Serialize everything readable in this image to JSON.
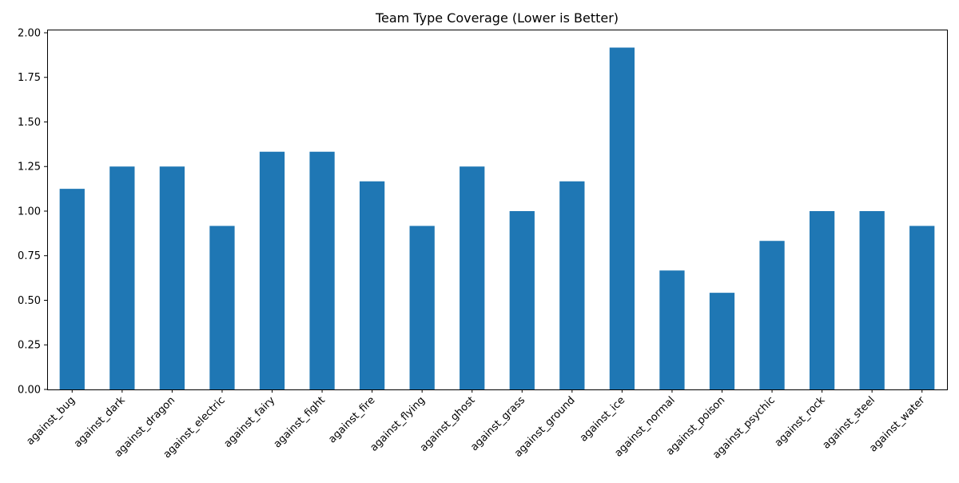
{
  "chart_data": {
    "type": "bar",
    "title": "Team Type Coverage (Lower is Better)",
    "xlabel": "",
    "ylabel": "",
    "categories": [
      "against_bug",
      "against_dark",
      "against_dragon",
      "against_electric",
      "against_fairy",
      "against_fight",
      "against_fire",
      "against_flying",
      "against_ghost",
      "against_grass",
      "against_ground",
      "against_ice",
      "against_normal",
      "against_poison",
      "against_psychic",
      "against_rock",
      "against_steel",
      "against_water"
    ],
    "values": [
      1.125,
      1.25,
      1.25,
      0.917,
      1.333,
      1.333,
      1.167,
      0.917,
      1.25,
      1.0,
      1.167,
      1.917,
      0.667,
      0.542,
      0.833,
      1.0,
      1.0,
      0.917
    ],
    "ylim": [
      0,
      2.0179
    ],
    "yticks": [
      0.0,
      0.25,
      0.5,
      0.75,
      1.0,
      1.25,
      1.5,
      1.75,
      2.0
    ],
    "ytick_labels": [
      "0.00",
      "0.25",
      "0.50",
      "0.75",
      "1.00",
      "1.25",
      "1.50",
      "1.75",
      "2.00"
    ],
    "bar_color": "#1f77b4",
    "grid": false,
    "legend": "none"
  }
}
